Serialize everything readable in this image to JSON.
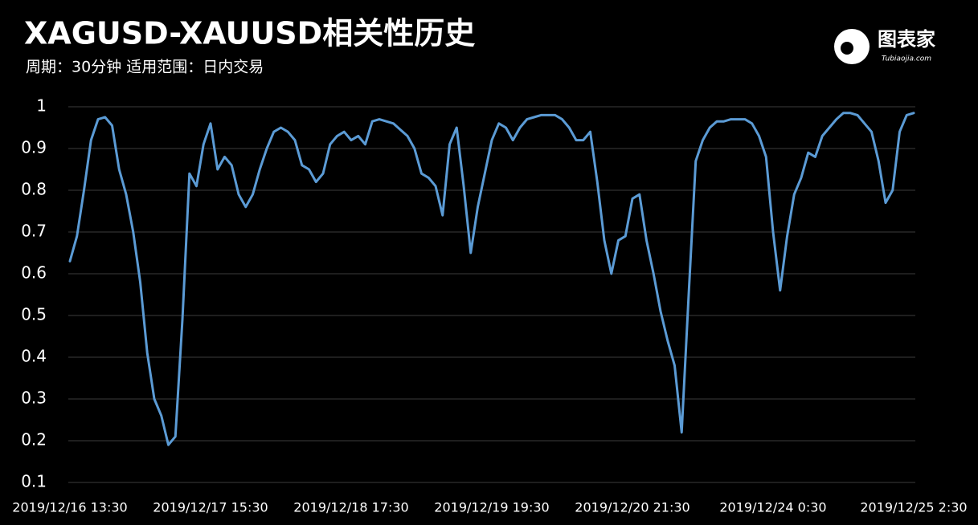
{
  "chart_data": {
    "type": "line",
    "title": "XAGUSD-XAUUSD相关性历史",
    "subtitle": "周期：30分钟 适用范围：日内交易",
    "logo_text": "图表家",
    "logo_subtext": "Tubiaojia.com",
    "categories": [
      "2019/12/16 13:30",
      null,
      null,
      null,
      null,
      null,
      null,
      null,
      null,
      null,
      null,
      null,
      null,
      null,
      null,
      null,
      null,
      null,
      null,
      null,
      "2019/12/17 15:30",
      null,
      null,
      null,
      null,
      null,
      null,
      null,
      null,
      null,
      null,
      null,
      null,
      null,
      null,
      null,
      null,
      null,
      null,
      null,
      "2019/12/18 17:30",
      null,
      null,
      null,
      null,
      null,
      null,
      null,
      null,
      null,
      null,
      null,
      null,
      null,
      null,
      null,
      null,
      null,
      null,
      null,
      "2019/12/19 19:30",
      null,
      null,
      null,
      null,
      null,
      null,
      null,
      null,
      null,
      null,
      null,
      null,
      null,
      null,
      null,
      null,
      null,
      null,
      null,
      "2019/12/20 21:30",
      null,
      null,
      null,
      null,
      null,
      null,
      null,
      null,
      null,
      null,
      null,
      null,
      null,
      null,
      null,
      null,
      null,
      null,
      null,
      "2019/12/24 0:30",
      null,
      null,
      null,
      null,
      null,
      null,
      null,
      null,
      null,
      null,
      null,
      null,
      null,
      null,
      null,
      null,
      null,
      null,
      null,
      "2019/12/25 2:30"
    ],
    "series": [
      {
        "name": "XAGUSD-XAUUSD",
        "color": "#5b9bd5",
        "values": [
          0.63,
          0.69,
          0.8,
          0.92,
          0.97,
          0.975,
          0.955,
          0.85,
          0.79,
          0.7,
          0.58,
          0.41,
          0.3,
          0.26,
          0.19,
          0.21,
          0.49,
          0.84,
          0.81,
          0.91,
          0.96,
          0.85,
          0.88,
          0.86,
          0.79,
          0.76,
          0.79,
          0.85,
          0.9,
          0.94,
          0.95,
          0.94,
          0.92,
          0.86,
          0.85,
          0.82,
          0.84,
          0.91,
          0.93,
          0.94,
          0.92,
          0.93,
          0.91,
          0.965,
          0.97,
          0.965,
          0.96,
          0.945,
          0.93,
          0.9,
          0.84,
          0.83,
          0.81,
          0.74,
          0.91,
          0.95,
          0.81,
          0.65,
          0.76,
          0.84,
          0.92,
          0.96,
          0.95,
          0.92,
          0.95,
          0.97,
          0.975,
          0.98,
          0.98,
          0.98,
          0.97,
          0.95,
          0.92,
          0.92,
          0.94,
          0.82,
          0.68,
          0.6,
          0.68,
          0.69,
          0.78,
          0.79,
          0.68,
          0.6,
          0.51,
          0.44,
          0.38,
          0.22,
          0.55,
          0.87,
          0.92,
          0.95,
          0.965,
          0.965,
          0.97,
          0.97,
          0.97,
          0.96,
          0.93,
          0.88,
          0.7,
          0.56,
          0.69,
          0.79,
          0.83,
          0.89,
          0.88,
          0.93,
          0.95,
          0.97,
          0.985,
          0.985,
          0.98,
          0.96,
          0.94,
          0.87,
          0.77,
          0.8,
          0.94,
          0.98,
          0.985
        ]
      }
    ],
    "ylim": [
      0.1,
      1
    ],
    "yticks": [
      0.1,
      0.2,
      0.3,
      0.4,
      0.5,
      0.6,
      0.7,
      0.8,
      0.9,
      1
    ],
    "grid": true
  }
}
